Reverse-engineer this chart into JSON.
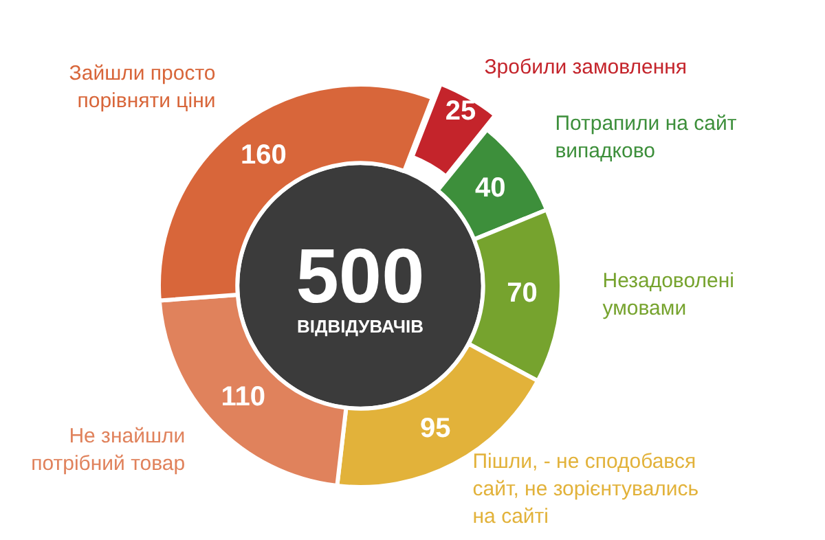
{
  "chart_data": {
    "type": "donut",
    "categories": [
      "Зробили замовлення",
      "Потрапили на сайт випадково",
      "Незадоволені умовами",
      "Пішли, - не сподобався сайт, не зорієнтувались на сайті",
      "Не знайшли потрібний товар",
      "Зайшли просто порівняти ціни"
    ],
    "values": [
      25,
      40,
      70,
      95,
      110,
      160
    ],
    "colors": [
      "#c4242b",
      "#3d8f3b",
      "#76a32e",
      "#e2b23a",
      "#e0825c",
      "#d8663a"
    ],
    "data_labels": true,
    "legend": false,
    "annotations": [
      "500",
      "ВІДВІДУВАЧІВ"
    ]
  }
}
